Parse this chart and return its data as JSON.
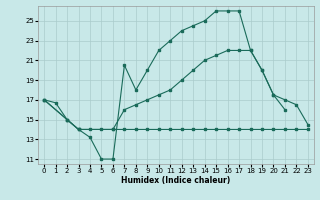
{
  "bg_color": "#c8e8e8",
  "grid_color": "#aacccc",
  "line_color": "#1a6b5a",
  "xlabel": "Humidex (Indice chaleur)",
  "xlim": [
    -0.5,
    23.5
  ],
  "ylim": [
    10.5,
    26.5
  ],
  "yticks": [
    11,
    13,
    15,
    17,
    19,
    21,
    23,
    25
  ],
  "xticks": [
    0,
    1,
    2,
    3,
    4,
    5,
    6,
    7,
    8,
    9,
    10,
    11,
    12,
    13,
    14,
    15,
    16,
    17,
    18,
    19,
    20,
    21,
    22,
    23
  ],
  "series": [
    {
      "x": [
        0,
        1,
        2,
        3,
        4,
        5,
        6,
        7,
        8,
        9,
        10,
        11,
        12,
        13,
        14,
        15,
        16,
        17,
        18,
        19,
        20,
        21
      ],
      "y": [
        17.0,
        16.7,
        15.0,
        14.0,
        13.2,
        11.0,
        11.0,
        20.5,
        18.0,
        20.0,
        22.0,
        23.0,
        24.0,
        24.5,
        25.0,
        26.0,
        26.0,
        26.0,
        22.0,
        20.0,
        17.5,
        16.0
      ]
    },
    {
      "x": [
        0,
        2,
        3,
        6,
        7,
        8,
        9,
        10,
        11,
        12,
        13,
        14,
        15,
        16,
        17,
        18,
        19,
        20,
        21,
        22,
        23
      ],
      "y": [
        17.0,
        15.0,
        14.0,
        14.0,
        16.0,
        16.5,
        17.0,
        17.5,
        18.0,
        19.0,
        20.0,
        21.0,
        21.5,
        22.0,
        22.0,
        22.0,
        20.0,
        17.5,
        17.0,
        16.5,
        14.5
      ]
    },
    {
      "x": [
        0,
        2,
        3,
        4,
        5,
        6,
        7,
        8,
        9,
        10,
        11,
        12,
        13,
        14,
        15,
        16,
        17,
        18,
        19,
        20,
        21,
        22,
        23
      ],
      "y": [
        17.0,
        15.0,
        14.0,
        14.0,
        14.0,
        14.0,
        14.0,
        14.0,
        14.0,
        14.0,
        14.0,
        14.0,
        14.0,
        14.0,
        14.0,
        14.0,
        14.0,
        14.0,
        14.0,
        14.0,
        14.0,
        14.0,
        14.0
      ]
    }
  ]
}
